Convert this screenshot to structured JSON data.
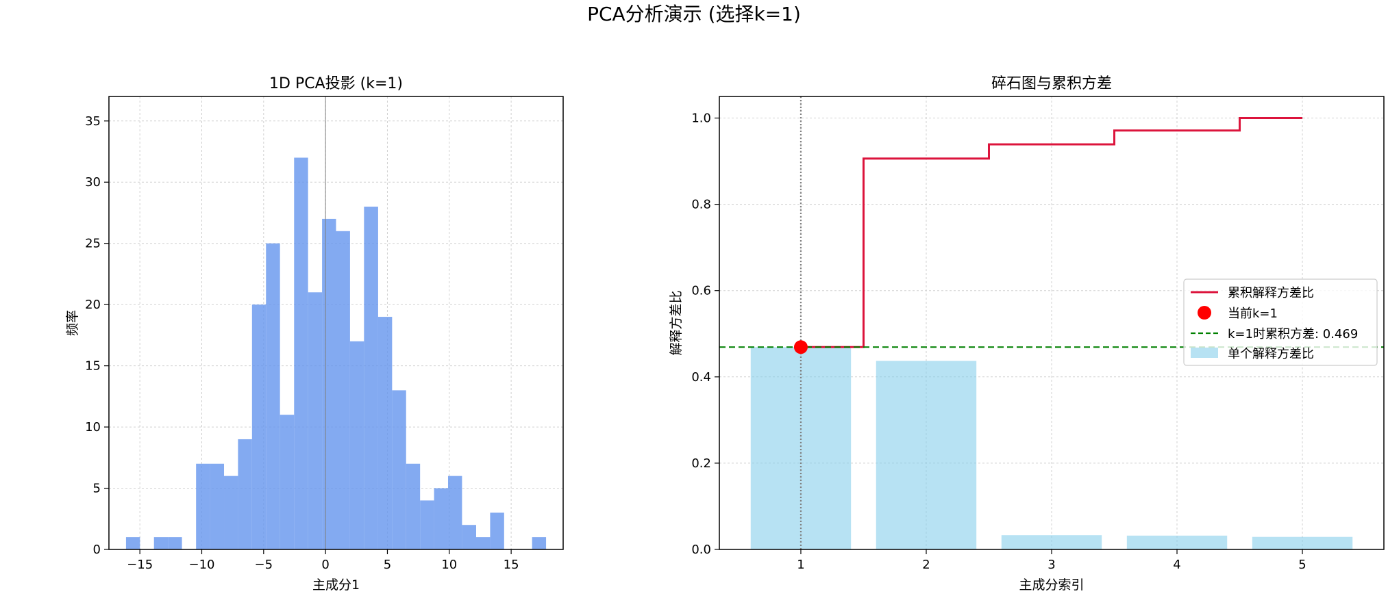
{
  "figure": {
    "suptitle": "PCA分析演示 (选择k=1)"
  },
  "chart_data": [
    {
      "type": "histogram",
      "title": "1D PCA投影 (k=1)",
      "xlabel": "主成分1",
      "ylabel": "频率",
      "xlim": [
        -17.5,
        19.2
      ],
      "ylim": [
        0,
        37
      ],
      "xticks": [
        -15,
        -10,
        -5,
        0,
        5,
        10,
        15
      ],
      "yticks": [
        0,
        5,
        10,
        15,
        20,
        25,
        30,
        35
      ],
      "grid": true,
      "bar_color": "#6495ED",
      "zero_line_color": "#808080",
      "bins": [
        {
          "x0": -16.12,
          "x1": -14.99,
          "count": 1
        },
        {
          "x0": -14.99,
          "x1": -13.86,
          "count": 0
        },
        {
          "x0": -13.86,
          "x1": -12.73,
          "count": 1
        },
        {
          "x0": -12.73,
          "x1": -11.6,
          "count": 1
        },
        {
          "x0": -11.6,
          "x1": -10.46,
          "count": 0
        },
        {
          "x0": -10.46,
          "x1": -9.33,
          "count": 7
        },
        {
          "x0": -9.33,
          "x1": -8.2,
          "count": 7
        },
        {
          "x0": -8.2,
          "x1": -7.07,
          "count": 6
        },
        {
          "x0": -7.07,
          "x1": -5.94,
          "count": 9
        },
        {
          "x0": -5.94,
          "x1": -4.81,
          "count": 20
        },
        {
          "x0": -4.81,
          "x1": -3.68,
          "count": 25
        },
        {
          "x0": -3.68,
          "x1": -2.54,
          "count": 11
        },
        {
          "x0": -2.54,
          "x1": -1.41,
          "count": 32
        },
        {
          "x0": -1.41,
          "x1": -0.28,
          "count": 21
        },
        {
          "x0": -0.28,
          "x1": 0.85,
          "count": 27
        },
        {
          "x0": 0.85,
          "x1": 1.98,
          "count": 26
        },
        {
          "x0": 1.98,
          "x1": 3.11,
          "count": 17
        },
        {
          "x0": 3.11,
          "x1": 4.25,
          "count": 28
        },
        {
          "x0": 4.25,
          "x1": 5.38,
          "count": 19
        },
        {
          "x0": 5.38,
          "x1": 6.51,
          "count": 13
        },
        {
          "x0": 6.51,
          "x1": 7.64,
          "count": 7
        },
        {
          "x0": 7.64,
          "x1": 8.77,
          "count": 4
        },
        {
          "x0": 8.77,
          "x1": 9.9,
          "count": 5
        },
        {
          "x0": 9.9,
          "x1": 11.03,
          "count": 6
        },
        {
          "x0": 11.03,
          "x1": 12.17,
          "count": 2
        },
        {
          "x0": 12.17,
          "x1": 13.3,
          "count": 1
        },
        {
          "x0": 13.3,
          "x1": 14.43,
          "count": 3
        },
        {
          "x0": 14.43,
          "x1": 15.56,
          "count": 0
        },
        {
          "x0": 15.56,
          "x1": 16.69,
          "count": 0
        },
        {
          "x0": 16.69,
          "x1": 17.82,
          "count": 1
        }
      ]
    },
    {
      "type": "bar+step",
      "title": "碎石图与累积方差",
      "xlabel": "主成分索引",
      "ylabel": "解释方差比",
      "xlim": [
        0.35,
        5.65
      ],
      "ylim": [
        0,
        1.05
      ],
      "xticks": [
        1,
        2,
        3,
        4,
        5
      ],
      "yticks": [
        "0.0",
        "0.2",
        "0.4",
        "0.6",
        "0.8",
        "1.0"
      ],
      "grid": true,
      "categories": [
        1,
        2,
        3,
        4,
        5
      ],
      "series": [
        {
          "name": "单个解释方差比",
          "kind": "bar",
          "color": "#87CEEB",
          "values": [
            0.469,
            0.437,
            0.033,
            0.032,
            0.029
          ]
        },
        {
          "name": "累积解释方差比",
          "kind": "step",
          "color": "#DC143C",
          "values": [
            0.469,
            0.906,
            0.939,
            0.971,
            1.0
          ]
        }
      ],
      "marker": {
        "name": "当前k=1",
        "x": 1,
        "y": 0.469,
        "color": "#FF0000"
      },
      "hline": {
        "name": "k=1时累积方差: 0.469",
        "y": 0.469,
        "color": "#008000",
        "style": "dashed"
      },
      "vline": {
        "x": 1,
        "color": "#808080",
        "style": "dotted"
      },
      "legend_position": "center-right"
    }
  ]
}
